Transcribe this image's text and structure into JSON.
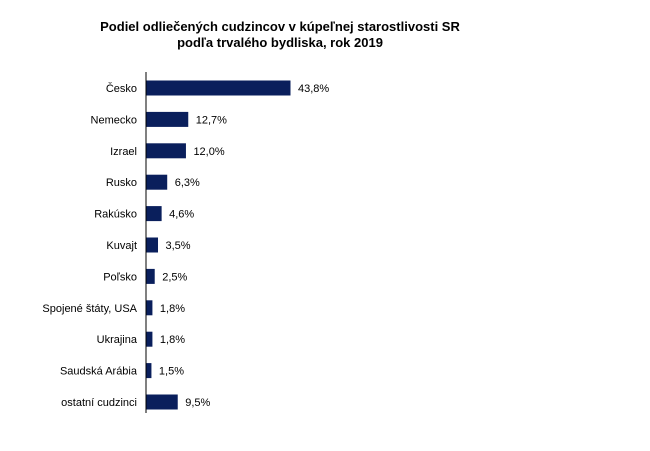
{
  "chart_data": {
    "type": "bar",
    "orientation": "horizontal",
    "title_lines": [
      "Podiel odliečených cudzincov  v  kúpeľnej starostlivosti   SR",
      "podľa trvalého bydliska,  rok 2019"
    ],
    "categories": [
      "Česko",
      "Nemecko",
      "Izrael",
      "Rusko",
      "Rakúsko",
      "Kuvajt",
      "Poľsko",
      "Spojené štáty, USA",
      "Ukrajina",
      "Saudská Arábia",
      "ostatní cudzinci"
    ],
    "values": [
      43.8,
      12.7,
      12.0,
      6.3,
      4.6,
      3.5,
      2.5,
      1.8,
      1.8,
      1.5,
      9.5
    ],
    "data_labels": [
      "43,8%",
      "12,7%",
      "12,0%",
      "6,3%",
      "4,6%",
      "3,5%",
      "2,5%",
      "1,8%",
      "1,8%",
      "1,5%",
      "9,5%"
    ],
    "bar_color": "#0a1f5c",
    "xlabel": "",
    "ylabel": "",
    "xlim": [
      0,
      100
    ],
    "grid": false,
    "legend": "none"
  }
}
